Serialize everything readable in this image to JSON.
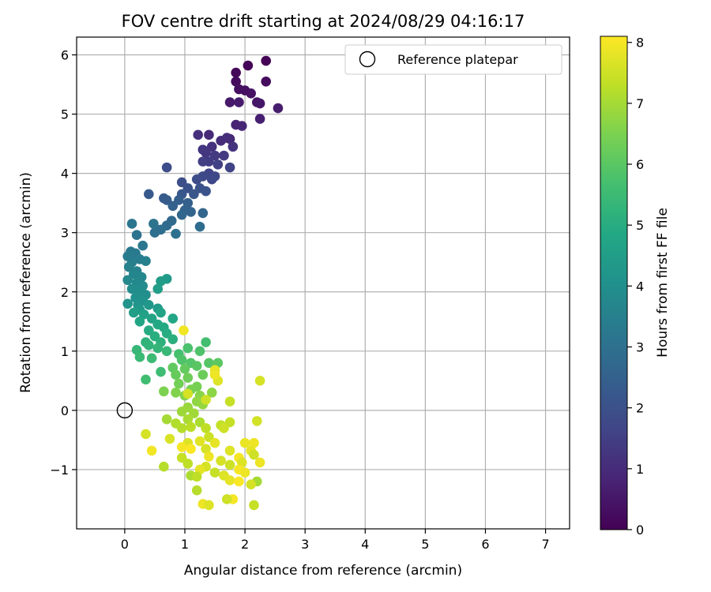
{
  "chart_data": {
    "type": "scatter",
    "title": "FOV centre drift starting at 2024/08/29 04:16:17",
    "xlabel": "Angular distance from reference (arcmin)",
    "ylabel": "Rotation from reference (arcmin)",
    "xlim": [
      -0.8,
      7.4
    ],
    "ylim": [
      -2.0,
      6.3
    ],
    "xticks": [
      0,
      1,
      2,
      3,
      4,
      5,
      6,
      7
    ],
    "xtick_labels": [
      "0",
      "1",
      "2",
      "3",
      "4",
      "5",
      "6",
      "7"
    ],
    "yticks": [
      -1,
      0,
      1,
      2,
      3,
      4,
      5,
      6
    ],
    "ytick_labels": [
      "−1",
      "0",
      "1",
      "2",
      "3",
      "4",
      "5",
      "6"
    ],
    "grid": true,
    "legend_position": "top-right",
    "reference": {
      "label": "Reference platepar",
      "x": 0,
      "y": 0
    },
    "colorbar": {
      "label": "Hours from first FF file",
      "colormap": "viridis",
      "range": [
        0,
        8.1
      ],
      "ticks": [
        0,
        1,
        2,
        3,
        4,
        5,
        6,
        7,
        8
      ],
      "tick_labels": [
        "0",
        "1",
        "2",
        "3",
        "4",
        "5",
        "6",
        "7",
        "8"
      ]
    },
    "series": [
      {
        "color_by": "hours",
        "points": [
          [
            2.35,
            5.9,
            0.05
          ],
          [
            2.05,
            5.82,
            0.1
          ],
          [
            1.85,
            5.7,
            0.15
          ],
          [
            1.85,
            5.55,
            0.2
          ],
          [
            2.35,
            5.55,
            0.25
          ],
          [
            1.9,
            5.42,
            0.3
          ],
          [
            2.0,
            5.4,
            0.35
          ],
          [
            2.1,
            5.35,
            0.4
          ],
          [
            2.2,
            5.2,
            0.45
          ],
          [
            2.25,
            5.18,
            0.5
          ],
          [
            1.75,
            5.2,
            0.55
          ],
          [
            1.9,
            5.2,
            0.6
          ],
          [
            2.55,
            5.1,
            0.65
          ],
          [
            2.25,
            4.92,
            0.7
          ],
          [
            1.85,
            4.82,
            0.8
          ],
          [
            1.95,
            4.8,
            0.85
          ],
          [
            1.75,
            4.58,
            0.9
          ],
          [
            1.4,
            4.65,
            0.95
          ],
          [
            1.6,
            4.55,
            1.0
          ],
          [
            1.7,
            4.6,
            1.05
          ],
          [
            1.22,
            4.65,
            1.1
          ],
          [
            1.45,
            4.45,
            1.15
          ],
          [
            1.8,
            4.45,
            1.2
          ],
          [
            1.3,
            4.4,
            1.25
          ],
          [
            1.35,
            4.35,
            1.3
          ],
          [
            1.5,
            4.3,
            1.35
          ],
          [
            1.65,
            4.3,
            1.4
          ],
          [
            1.4,
            4.2,
            1.45
          ],
          [
            1.3,
            4.2,
            1.5
          ],
          [
            1.55,
            4.15,
            1.55
          ],
          [
            1.75,
            4.1,
            1.6
          ],
          [
            1.4,
            4.0,
            1.65
          ],
          [
            1.5,
            3.95,
            1.7
          ],
          [
            1.45,
            3.9,
            1.75
          ],
          [
            1.3,
            3.95,
            1.8
          ],
          [
            1.2,
            3.9,
            1.85
          ],
          [
            0.7,
            4.1,
            1.9
          ],
          [
            0.95,
            3.85,
            1.95
          ],
          [
            1.05,
            3.75,
            2.0
          ],
          [
            1.25,
            3.75,
            2.05
          ],
          [
            1.35,
            3.7,
            2.1
          ],
          [
            1.15,
            3.65,
            2.15
          ],
          [
            0.95,
            3.65,
            2.2
          ],
          [
            0.4,
            3.65,
            2.25
          ],
          [
            0.65,
            3.58,
            2.3
          ],
          [
            0.7,
            3.55,
            2.35
          ],
          [
            0.9,
            3.55,
            2.4
          ],
          [
            1.05,
            3.5,
            2.45
          ],
          [
            0.8,
            3.45,
            2.5
          ],
          [
            1.0,
            3.38,
            2.55
          ],
          [
            1.1,
            3.35,
            2.6
          ],
          [
            1.3,
            3.33,
            2.65
          ],
          [
            0.95,
            3.3,
            2.7
          ],
          [
            0.78,
            3.2,
            2.75
          ],
          [
            0.7,
            3.12,
            2.8
          ],
          [
            1.25,
            3.1,
            2.85
          ],
          [
            0.6,
            3.05,
            2.9
          ],
          [
            0.5,
            3.0,
            2.95
          ],
          [
            0.85,
            2.98,
            3.0
          ],
          [
            0.2,
            2.96,
            3.05
          ],
          [
            0.48,
            3.15,
            3.1
          ],
          [
            0.12,
            3.15,
            3.15
          ],
          [
            0.3,
            2.78,
            3.2
          ],
          [
            0.1,
            2.68,
            3.25
          ],
          [
            0.18,
            2.65,
            3.3
          ],
          [
            0.05,
            2.6,
            3.35
          ],
          [
            0.25,
            2.55,
            3.4
          ],
          [
            0.12,
            2.5,
            3.45
          ],
          [
            0.35,
            2.52,
            3.5
          ],
          [
            0.07,
            2.42,
            3.55
          ],
          [
            0.2,
            2.35,
            3.6
          ],
          [
            0.15,
            2.3,
            3.65
          ],
          [
            0.28,
            2.25,
            3.7
          ],
          [
            0.05,
            2.2,
            3.75
          ],
          [
            0.2,
            2.15,
            3.8
          ],
          [
            0.3,
            2.1,
            3.85
          ],
          [
            0.12,
            2.05,
            3.9
          ],
          [
            0.25,
            2.0,
            3.95
          ],
          [
            0.35,
            1.95,
            4.0
          ],
          [
            0.18,
            1.9,
            4.05
          ],
          [
            0.3,
            1.85,
            4.1
          ],
          [
            0.05,
            1.8,
            4.15
          ],
          [
            0.22,
            1.78,
            4.2
          ],
          [
            0.4,
            1.78,
            4.25
          ],
          [
            0.25,
            1.7,
            4.3
          ],
          [
            0.55,
            1.72,
            4.35
          ],
          [
            0.7,
            2.22,
            4.4
          ],
          [
            0.6,
            2.18,
            4.45
          ],
          [
            0.55,
            2.05,
            4.5
          ],
          [
            0.15,
            1.65,
            4.55
          ],
          [
            0.32,
            1.62,
            4.6
          ],
          [
            0.6,
            1.65,
            4.65
          ],
          [
            0.45,
            1.55,
            4.7
          ],
          [
            0.25,
            1.5,
            4.75
          ],
          [
            0.8,
            1.55,
            4.8
          ],
          [
            0.55,
            1.45,
            4.85
          ],
          [
            0.65,
            1.4,
            4.9
          ],
          [
            0.4,
            1.35,
            4.95
          ],
          [
            0.7,
            1.3,
            5.0
          ],
          [
            0.5,
            1.25,
            5.05
          ],
          [
            0.8,
            1.2,
            5.1
          ],
          [
            0.6,
            1.15,
            5.15
          ],
          [
            0.35,
            1.15,
            5.2
          ],
          [
            0.4,
            1.1,
            5.25
          ],
          [
            0.55,
            1.05,
            5.3
          ],
          [
            0.2,
            1.02,
            5.35
          ],
          [
            0.7,
            1.0,
            5.4
          ],
          [
            0.25,
            0.9,
            5.45
          ],
          [
            0.45,
            0.88,
            5.5
          ],
          [
            0.6,
            0.65,
            5.55
          ],
          [
            0.35,
            0.52,
            5.6
          ],
          [
            1.35,
            1.15,
            5.65
          ],
          [
            0.9,
            0.95,
            5.7
          ],
          [
            1.05,
            1.05,
            5.75
          ],
          [
            1.25,
            1.0,
            5.8
          ],
          [
            0.95,
            0.85,
            5.85
          ],
          [
            1.1,
            0.8,
            5.9
          ],
          [
            1.4,
            0.8,
            5.95
          ],
          [
            1.2,
            0.75,
            6.0
          ],
          [
            1.55,
            0.8,
            6.05
          ],
          [
            0.8,
            0.72,
            6.1
          ],
          [
            1.0,
            0.7,
            6.15
          ],
          [
            0.85,
            0.6,
            6.2
          ],
          [
            1.3,
            0.6,
            6.25
          ],
          [
            1.05,
            0.55,
            6.3
          ],
          [
            0.9,
            0.45,
            6.35
          ],
          [
            1.2,
            0.4,
            6.4
          ],
          [
            1.1,
            0.35,
            6.45
          ],
          [
            0.65,
            0.32,
            6.5
          ],
          [
            0.85,
            0.3,
            6.55
          ],
          [
            1.0,
            0.25,
            6.6
          ],
          [
            1.25,
            0.25,
            6.65
          ],
          [
            1.45,
            0.3,
            6.7
          ],
          [
            1.2,
            0.15,
            6.75
          ],
          [
            1.3,
            0.1,
            6.8
          ],
          [
            1.05,
            0.05,
            6.85
          ],
          [
            0.95,
            -0.02,
            6.9
          ],
          [
            1.15,
            -0.05,
            6.95
          ],
          [
            0.7,
            -0.15,
            7.0
          ],
          [
            1.05,
            -0.15,
            7.05
          ],
          [
            1.25,
            -0.2,
            7.1
          ],
          [
            0.85,
            -0.22,
            7.15
          ],
          [
            0.95,
            -0.3,
            7.2
          ],
          [
            1.1,
            -0.28,
            7.25
          ],
          [
            1.35,
            -0.3,
            7.3
          ],
          [
            1.6,
            -0.25,
            7.35
          ],
          [
            1.75,
            -0.2,
            7.4
          ],
          [
            1.4,
            -0.45,
            7.45
          ],
          [
            1.65,
            -0.3,
            7.5
          ],
          [
            2.2,
            -0.18,
            7.55
          ],
          [
            0.35,
            -0.4,
            7.6
          ],
          [
            0.75,
            -0.48,
            7.65
          ],
          [
            1.05,
            -0.55,
            7.7
          ],
          [
            1.25,
            -0.52,
            7.75
          ],
          [
            1.5,
            -0.55,
            7.8
          ],
          [
            2.0,
            -0.55,
            7.85
          ],
          [
            2.15,
            -0.55,
            7.9
          ],
          [
            0.45,
            -0.68,
            7.95
          ],
          [
            0.95,
            -0.62,
            8.0
          ],
          [
            1.1,
            -0.65,
            8.05
          ],
          [
            1.35,
            -0.65,
            7.6
          ],
          [
            1.75,
            -0.68,
            7.7
          ],
          [
            2.1,
            -0.68,
            7.8
          ],
          [
            1.4,
            -0.78,
            7.9
          ],
          [
            1.9,
            -0.8,
            8.0
          ],
          [
            2.15,
            -0.75,
            7.5
          ],
          [
            0.95,
            -0.8,
            7.4
          ],
          [
            1.6,
            -0.85,
            7.6
          ],
          [
            1.95,
            -0.88,
            7.7
          ],
          [
            2.25,
            -0.88,
            7.9
          ],
          [
            1.05,
            -0.9,
            7.3
          ],
          [
            1.75,
            -0.92,
            7.5
          ],
          [
            0.65,
            -0.95,
            7.2
          ],
          [
            1.35,
            -0.95,
            7.6
          ],
          [
            1.25,
            -1.0,
            7.8
          ],
          [
            1.9,
            -1.0,
            8.0
          ],
          [
            1.5,
            -1.05,
            7.4
          ],
          [
            2.0,
            -1.05,
            7.9
          ],
          [
            1.65,
            -1.1,
            7.7
          ],
          [
            1.1,
            -1.1,
            7.1
          ],
          [
            1.2,
            -1.12,
            7.3
          ],
          [
            2.2,
            -1.2,
            7.0
          ],
          [
            1.75,
            -1.18,
            7.8
          ],
          [
            1.9,
            -1.2,
            8.05
          ],
          [
            2.1,
            -1.25,
            7.6
          ],
          [
            1.2,
            -1.35,
            7.2
          ],
          [
            1.8,
            -1.5,
            8.0
          ],
          [
            1.7,
            -1.5,
            7.5
          ],
          [
            2.15,
            -1.6,
            7.4
          ],
          [
            1.3,
            -1.58,
            7.9
          ],
          [
            1.4,
            -1.6,
            7.7
          ],
          [
            0.98,
            1.35,
            7.95
          ],
          [
            1.5,
            0.68,
            7.8
          ],
          [
            1.55,
            0.5,
            7.7
          ],
          [
            2.25,
            0.5,
            7.6
          ],
          [
            1.5,
            0.6,
            7.9
          ],
          [
            1.05,
            0.28,
            7.6
          ],
          [
            1.35,
            0.18,
            7.5
          ],
          [
            1.75,
            0.15,
            7.4
          ]
        ]
      }
    ]
  }
}
